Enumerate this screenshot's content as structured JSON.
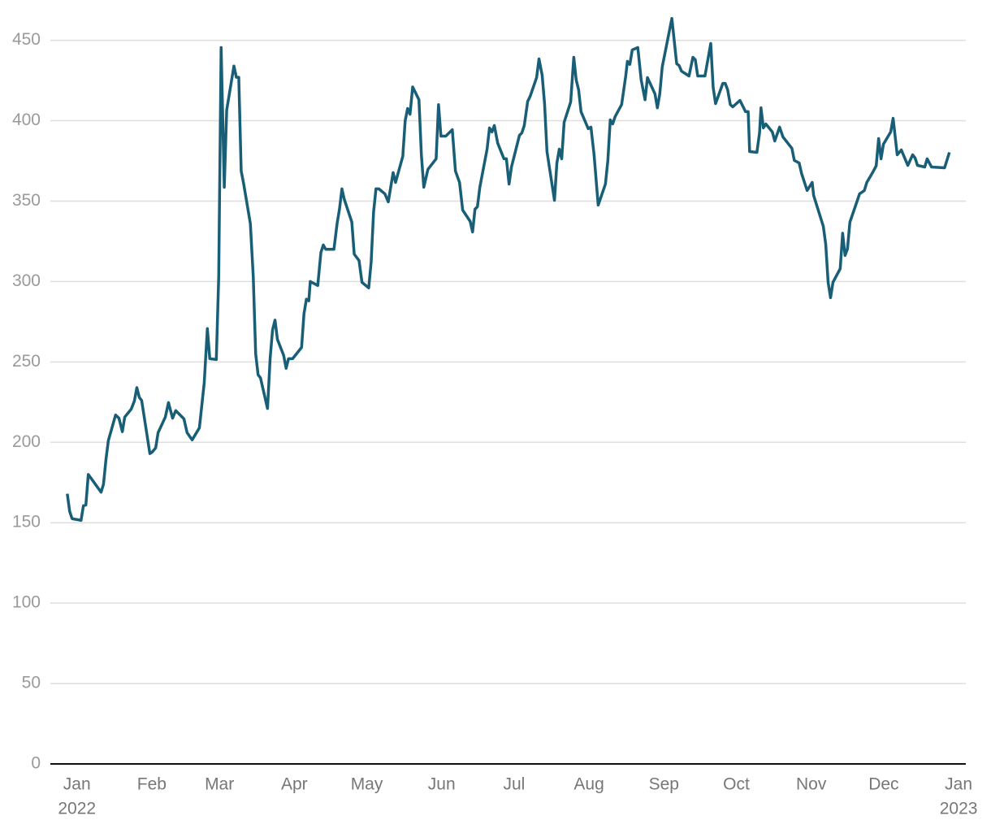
{
  "chart_data": {
    "type": "line",
    "x_unit": "days since Jan 1 2022",
    "xlim": [
      -11,
      368
    ],
    "ylim": [
      0,
      470
    ],
    "yticks": [
      0,
      50,
      100,
      150,
      200,
      250,
      300,
      350,
      400,
      450
    ],
    "xticks": [
      {
        "value": 0,
        "label": "Jan",
        "year": "2022"
      },
      {
        "value": 31,
        "label": "Feb"
      },
      {
        "value": 59,
        "label": "Mar"
      },
      {
        "value": 90,
        "label": "Apr"
      },
      {
        "value": 120,
        "label": "May"
      },
      {
        "value": 151,
        "label": "Jun"
      },
      {
        "value": 181,
        "label": "Jul"
      },
      {
        "value": 212,
        "label": "Aug"
      },
      {
        "value": 243,
        "label": "Sep"
      },
      {
        "value": 273,
        "label": "Oct"
      },
      {
        "value": 304,
        "label": "Nov"
      },
      {
        "value": 334,
        "label": "Dec"
      },
      {
        "value": 365,
        "label": "Jan",
        "year": "2023"
      }
    ],
    "grid": true,
    "series": [
      {
        "color": "#195e77",
        "x": [
          -4,
          -3,
          -2,
          1.7,
          2.7,
          3.7,
          4.7,
          10,
          11,
          12,
          13,
          16,
          17.4,
          18.8,
          19.8,
          22.5,
          23.8,
          24.8,
          25.8,
          26.8,
          30.2,
          31.2,
          32.6,
          33.6,
          36.6,
          37.9,
          39.6,
          40.9,
          44.3,
          45.6,
          47.7,
          50.7,
          52.7,
          54,
          55,
          57.7,
          58.7,
          59.7,
          61,
          62,
          65,
          66,
          67,
          68,
          69,
          71.8,
          73,
          74,
          75,
          76,
          78.9,
          80,
          81,
          82,
          83,
          85.6,
          86.6,
          87.6,
          89.3,
          93,
          94,
          95,
          96,
          96.6,
          99.7,
          101,
          102,
          103,
          106.4,
          107.7,
          108.7,
          109.7,
          110.7,
          113.8,
          114.8,
          116.8,
          118,
          120.8,
          121.8,
          122.8,
          123.8,
          125,
          127.5,
          128.9,
          130.9,
          131.9,
          134.9,
          135.9,
          136.9,
          137.9,
          139,
          141.6,
          142.6,
          143.6,
          145.3,
          148.7,
          149.7,
          150.7,
          152.7,
          155.4,
          156.7,
          158.4,
          159.7,
          162.8,
          163.8,
          164.8,
          165.8,
          166.8,
          169.8,
          170.8,
          171.8,
          172.8,
          174.2,
          176.8,
          177.8,
          178.9,
          179.9,
          183.2,
          184.2,
          185.2,
          186.6,
          187.6,
          190.3,
          191.3,
          192.6,
          193.6,
          194.6,
          197.7,
          198.7,
          199.7,
          200.7,
          201.7,
          204.4,
          205.7,
          206.7,
          207.7,
          208.7,
          211.7,
          212.8,
          214.1,
          215.8,
          218.8,
          219.8,
          220.8,
          221.8,
          222.8,
          225.5,
          227.2,
          227.9,
          228.9,
          229.9,
          232.2,
          233.6,
          235.2,
          236.2,
          239.3,
          240.3,
          241.3,
          242.3,
          246.3,
          248.3,
          249.3,
          250.3,
          253.4,
          255,
          256,
          257,
          260,
          262.4,
          263.4,
          264.4,
          267.4,
          268.4,
          269.4,
          270.5,
          271.5,
          274.5,
          276.8,
          277.9,
          278.5,
          281.5,
          282.6,
          283.2,
          284.2,
          285.2,
          287.9,
          288.9,
          290.9,
          292.3,
          296,
          297,
          299,
          300,
          302.3,
          304.4,
          305,
          309,
          310,
          311,
          312,
          313,
          316,
          317,
          318,
          319,
          320,
          323,
          324,
          326,
          327,
          329.4,
          330.9,
          331.9,
          332.9,
          333.9,
          336.9,
          337.9,
          339.6,
          341.3,
          344,
          346,
          347,
          348,
          351,
          352,
          353.8,
          359.2,
          361.2
        ],
        "values": [
          168,
          157,
          152.5,
          151.5,
          160.6,
          161,
          180,
          169,
          174,
          189,
          201,
          217,
          215,
          206.6,
          215.7,
          220.7,
          225.8,
          234,
          228,
          226,
          193,
          194,
          196.5,
          206,
          215.7,
          224.7,
          215,
          219.7,
          214.6,
          206,
          201.5,
          209,
          237,
          270.7,
          252,
          251.5,
          303,
          445.5,
          358.6,
          406.6,
          434,
          427,
          427,
          368.7,
          361,
          336,
          303,
          255,
          242,
          240,
          221,
          252.5,
          270,
          276,
          264,
          254,
          246,
          252,
          252,
          259,
          280,
          289,
          288,
          300,
          297.5,
          318,
          322.7,
          320,
          320,
          336,
          345,
          357.6,
          351,
          337,
          317,
          313,
          299.5,
          296,
          312,
          343,
          357.6,
          357.6,
          354.5,
          349.5,
          367.7,
          361.6,
          377.8,
          400,
          407.6,
          404,
          421,
          413,
          378.8,
          358.6,
          369.7,
          376.3,
          410,
          390.4,
          390.4,
          394.4,
          368.7,
          361.6,
          344.4,
          337.4,
          330.8,
          345,
          346.5,
          358.6,
          382.3,
          395.5,
          393,
          397,
          386,
          376.3,
          376.3,
          360.6,
          371.2,
          390.9,
          392.4,
          397,
          412,
          415,
          426.8,
          438.4,
          428.3,
          410.6,
          380.8,
          350.5,
          373.7,
          382.3,
          376.3,
          399,
          411.6,
          439.4,
          425.3,
          419.2,
          405.6,
          395,
          396,
          378.8,
          347.5,
          360.6,
          375.3,
          400.5,
          398,
          402.5,
          410,
          427.8,
          436.9,
          435,
          444,
          445.5,
          425.3,
          413,
          426.8,
          416.7,
          408,
          416.7,
          433.3,
          463.6,
          435.4,
          434.3,
          430.8,
          427.8,
          439.4,
          437.9,
          427.8,
          427.8,
          448,
          420.7,
          410.6,
          423.2,
          423.2,
          419.2,
          410,
          408.6,
          412.6,
          405.6,
          405.6,
          380.8,
          380.3,
          392.4,
          408,
          395.5,
          398,
          393,
          387.4,
          396,
          389.9,
          382.8,
          375.3,
          373.7,
          367.2,
          356.6,
          361.6,
          353.5,
          334.3,
          323.2,
          299.5,
          289.9,
          299.5,
          308,
          330,
          316.2,
          320.2,
          336.9,
          350,
          354.5,
          356.6,
          361.6,
          367.7,
          372,
          388.9,
          376.3,
          385.4,
          393,
          401.5,
          378.8,
          381.8,
          372.2,
          378.8,
          376.8,
          372.2,
          371.2,
          376.3,
          371.2,
          370.7,
          380.3
        ]
      }
    ]
  }
}
